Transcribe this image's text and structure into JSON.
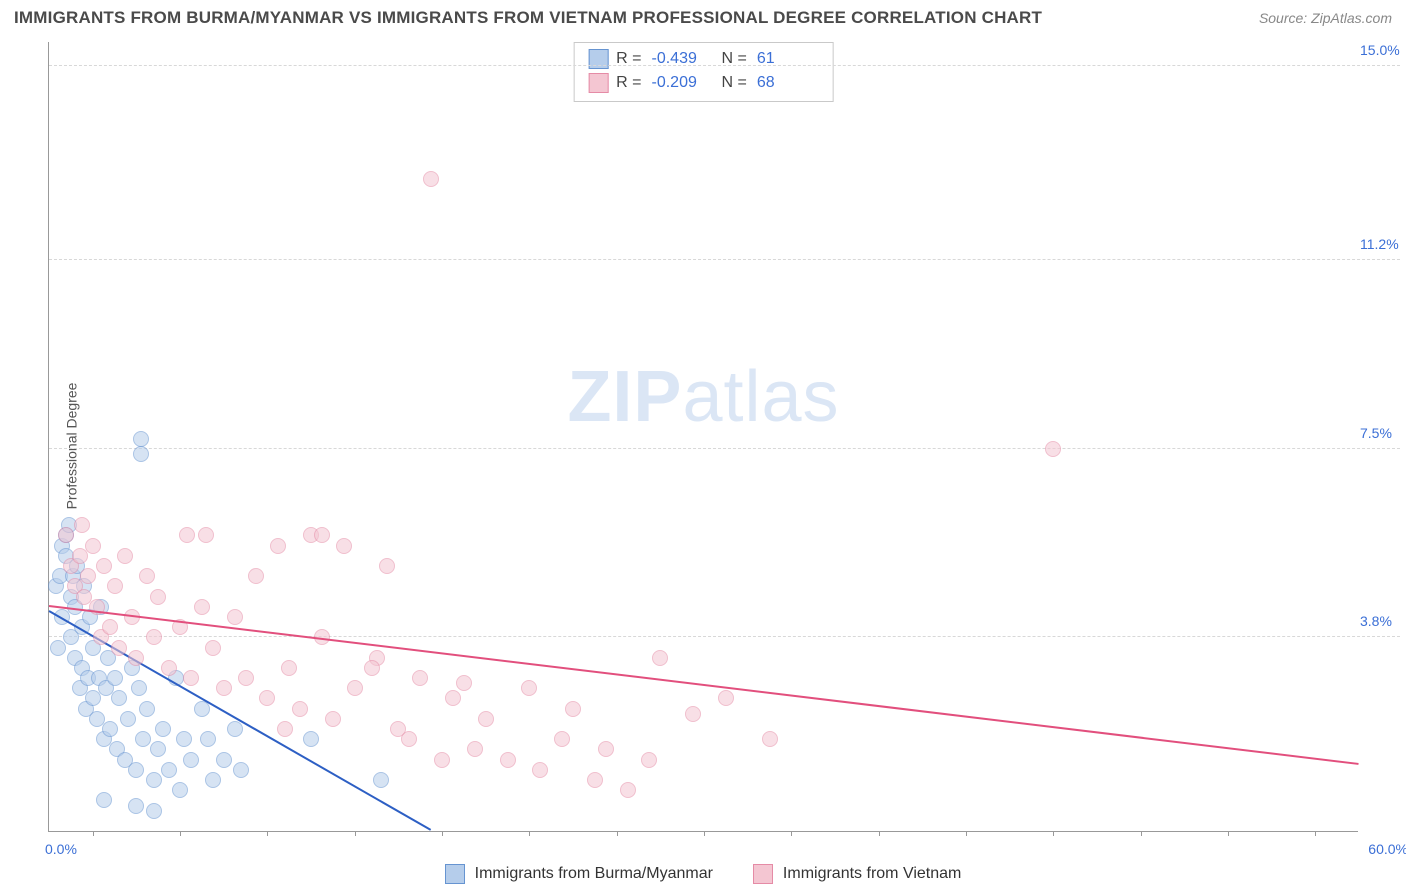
{
  "title": "IMMIGRANTS FROM BURMA/MYANMAR VS IMMIGRANTS FROM VIETNAM PROFESSIONAL DEGREE CORRELATION CHART",
  "source": "Source: ZipAtlas.com",
  "ylabel": "Professional Degree",
  "watermark_a": "ZIP",
  "watermark_b": "atlas",
  "chart": {
    "type": "scatter",
    "xlim": [
      0.0,
      60.0
    ],
    "ylim": [
      0.0,
      15.5
    ],
    "x_ticks": [
      "0.0%",
      "60.0%"
    ],
    "y_ticks": [
      {
        "v": 3.8,
        "label": "3.8%"
      },
      {
        "v": 7.5,
        "label": "7.5%"
      },
      {
        "v": 11.2,
        "label": "11.2%"
      },
      {
        "v": 15.0,
        "label": "15.0%"
      }
    ],
    "x_tick_positions": [
      2,
      6,
      10,
      14,
      18,
      22,
      26,
      30,
      34,
      38,
      42,
      46,
      50,
      54,
      58
    ],
    "grid_color": "#d8d8d8",
    "background_color": "#ffffff",
    "marker_radius": 8,
    "marker_opacity": 0.55,
    "series": [
      {
        "name": "Immigrants from Burma/Myanmar",
        "color_fill": "#b5cdeb",
        "color_stroke": "#6694d1",
        "trend_color": "#2d5fc4",
        "R": "-0.439",
        "N": "61",
        "trend": {
          "x1": 0.0,
          "y1": 4.3,
          "x2": 17.5,
          "y2": 0.0
        },
        "points": [
          [
            0.3,
            4.8
          ],
          [
            0.4,
            3.6
          ],
          [
            0.5,
            5.0
          ],
          [
            0.6,
            5.6
          ],
          [
            0.6,
            4.2
          ],
          [
            0.8,
            5.4
          ],
          [
            0.8,
            5.8
          ],
          [
            0.9,
            6.0
          ],
          [
            1.0,
            4.6
          ],
          [
            1.0,
            3.8
          ],
          [
            1.1,
            5.0
          ],
          [
            1.2,
            4.4
          ],
          [
            1.2,
            3.4
          ],
          [
            1.3,
            5.2
          ],
          [
            1.4,
            2.8
          ],
          [
            1.5,
            4.0
          ],
          [
            1.5,
            3.2
          ],
          [
            1.6,
            4.8
          ],
          [
            1.7,
            2.4
          ],
          [
            1.8,
            3.0
          ],
          [
            1.9,
            4.2
          ],
          [
            2.0,
            3.6
          ],
          [
            2.0,
            2.6
          ],
          [
            2.2,
            2.2
          ],
          [
            2.3,
            3.0
          ],
          [
            2.4,
            4.4
          ],
          [
            2.5,
            1.8
          ],
          [
            2.6,
            2.8
          ],
          [
            2.7,
            3.4
          ],
          [
            2.8,
            2.0
          ],
          [
            3.0,
            3.0
          ],
          [
            3.1,
            1.6
          ],
          [
            3.2,
            2.6
          ],
          [
            3.5,
            1.4
          ],
          [
            3.6,
            2.2
          ],
          [
            3.8,
            3.2
          ],
          [
            4.0,
            1.2
          ],
          [
            4.1,
            2.8
          ],
          [
            4.3,
            1.8
          ],
          [
            4.2,
            7.4
          ],
          [
            4.2,
            7.7
          ],
          [
            4.5,
            2.4
          ],
          [
            4.8,
            1.0
          ],
          [
            5.0,
            1.6
          ],
          [
            5.2,
            2.0
          ],
          [
            5.5,
            1.2
          ],
          [
            5.8,
            3.0
          ],
          [
            6.0,
            0.8
          ],
          [
            6.2,
            1.8
          ],
          [
            6.5,
            1.4
          ],
          [
            7.0,
            2.4
          ],
          [
            7.3,
            1.8
          ],
          [
            7.5,
            1.0
          ],
          [
            8.0,
            1.4
          ],
          [
            8.5,
            2.0
          ],
          [
            8.8,
            1.2
          ],
          [
            2.5,
            0.6
          ],
          [
            4.0,
            0.5
          ],
          [
            4.8,
            0.4
          ],
          [
            12.0,
            1.8
          ],
          [
            15.2,
            1.0
          ]
        ]
      },
      {
        "name": "Immigrants from Vietnam",
        "color_fill": "#f4c6d2",
        "color_stroke": "#e58ba6",
        "trend_color": "#e24f7d",
        "R": "-0.209",
        "N": "68",
        "trend": {
          "x1": 0.0,
          "y1": 4.4,
          "x2": 60.0,
          "y2": 1.3
        },
        "points": [
          [
            0.8,
            5.8
          ],
          [
            1.0,
            5.2
          ],
          [
            1.2,
            4.8
          ],
          [
            1.4,
            5.4
          ],
          [
            1.5,
            6.0
          ],
          [
            1.6,
            4.6
          ],
          [
            1.8,
            5.0
          ],
          [
            2.0,
            5.6
          ],
          [
            2.2,
            4.4
          ],
          [
            2.4,
            3.8
          ],
          [
            2.5,
            5.2
          ],
          [
            2.8,
            4.0
          ],
          [
            3.0,
            4.8
          ],
          [
            3.2,
            3.6
          ],
          [
            3.5,
            5.4
          ],
          [
            3.8,
            4.2
          ],
          [
            4.0,
            3.4
          ],
          [
            4.5,
            5.0
          ],
          [
            4.8,
            3.8
          ],
          [
            5.0,
            4.6
          ],
          [
            5.5,
            3.2
          ],
          [
            6.0,
            4.0
          ],
          [
            6.3,
            5.8
          ],
          [
            6.5,
            3.0
          ],
          [
            7.0,
            4.4
          ],
          [
            7.2,
            5.8
          ],
          [
            7.5,
            3.6
          ],
          [
            8.0,
            2.8
          ],
          [
            8.5,
            4.2
          ],
          [
            9.0,
            3.0
          ],
          [
            9.5,
            5.0
          ],
          [
            10.0,
            2.6
          ],
          [
            10.5,
            5.6
          ],
          [
            11.0,
            3.2
          ],
          [
            11.5,
            2.4
          ],
          [
            12.0,
            5.8
          ],
          [
            12.5,
            3.8
          ],
          [
            13.0,
            2.2
          ],
          [
            13.5,
            5.6
          ],
          [
            14.0,
            2.8
          ],
          [
            15.0,
            3.4
          ],
          [
            15.5,
            5.2
          ],
          [
            16.0,
            2.0
          ],
          [
            17.0,
            3.0
          ],
          [
            17.5,
            12.8
          ],
          [
            18.0,
            1.4
          ],
          [
            18.5,
            2.6
          ],
          [
            19.5,
            1.6
          ],
          [
            20.0,
            2.2
          ],
          [
            21.0,
            1.4
          ],
          [
            22.0,
            2.8
          ],
          [
            22.5,
            1.2
          ],
          [
            23.5,
            1.8
          ],
          [
            24.0,
            2.4
          ],
          [
            25.0,
            1.0
          ],
          [
            25.5,
            1.6
          ],
          [
            26.5,
            0.8
          ],
          [
            27.5,
            1.4
          ],
          [
            28.0,
            3.4
          ],
          [
            29.5,
            2.3
          ],
          [
            31.0,
            2.6
          ],
          [
            33.0,
            1.8
          ],
          [
            12.5,
            5.8
          ],
          [
            10.8,
            2.0
          ],
          [
            46.0,
            7.5
          ],
          [
            14.8,
            3.2
          ],
          [
            16.5,
            1.8
          ],
          [
            19.0,
            2.9
          ]
        ]
      }
    ]
  },
  "legend_bottom": [
    {
      "label": "Immigrants from Burma/Myanmar",
      "fill": "#b5cdeb",
      "stroke": "#6694d1"
    },
    {
      "label": "Immigrants from Vietnam",
      "fill": "#f4c6d2",
      "stroke": "#e58ba6"
    }
  ]
}
